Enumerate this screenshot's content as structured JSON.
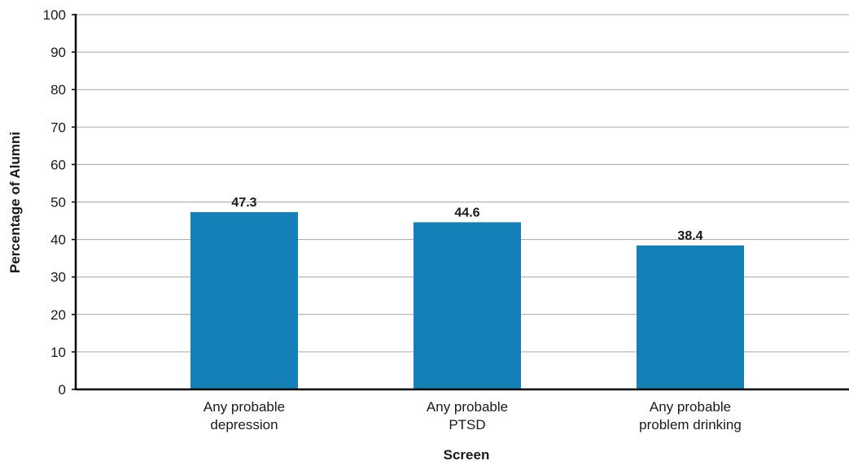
{
  "chart_data": {
    "type": "bar",
    "title": "",
    "xlabel": "Screen",
    "ylabel": "Percentage of Alumni",
    "ylim": [
      0,
      100
    ],
    "yticks": [
      0,
      10,
      20,
      30,
      40,
      50,
      60,
      70,
      80,
      90,
      100
    ],
    "grid": true,
    "categories": [
      [
        "Any probable",
        "depression"
      ],
      [
        "Any probable",
        "PTSD"
      ],
      [
        "Any probable",
        "problem drinking"
      ]
    ],
    "values": [
      47.3,
      44.6,
      38.4
    ],
    "value_labels": [
      "47.3",
      "44.6",
      "38.4"
    ],
    "colors": {
      "bar": "#1380b8",
      "grid": "#a6a6a6",
      "axis": "#000000"
    }
  }
}
